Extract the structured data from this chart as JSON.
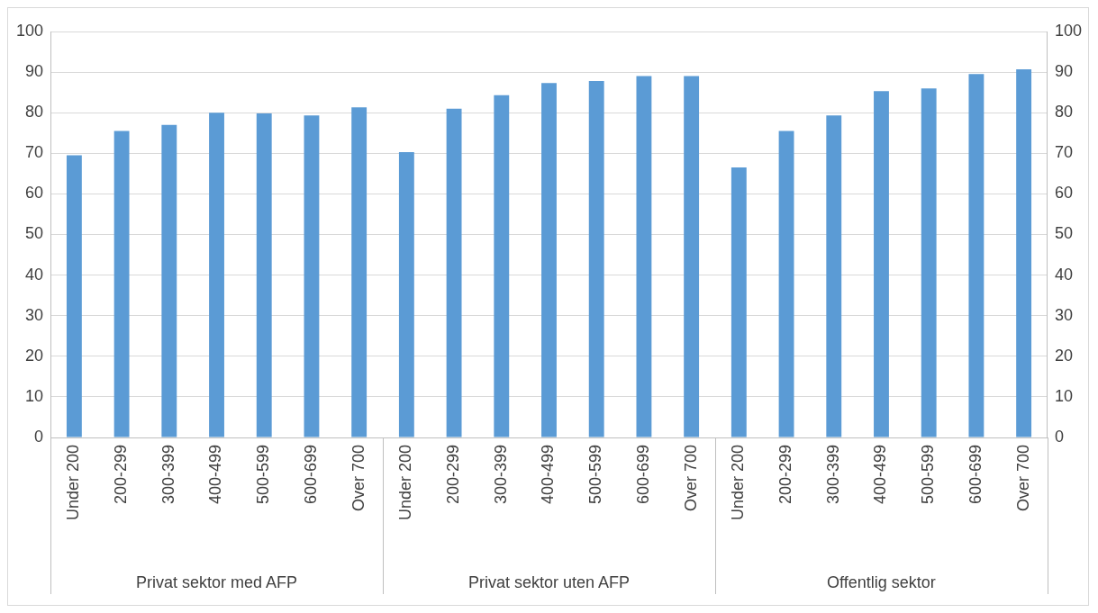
{
  "chart_data": {
    "type": "bar",
    "categories": [
      "Under 200",
      "200-299",
      "300-399",
      "400-499",
      "500-599",
      "600-699",
      "Over 700",
      "Under 200",
      "200-299",
      "300-399",
      "400-499",
      "500-599",
      "600-699",
      "Over 700",
      "Under 200",
      "200-299",
      "300-399",
      "400-499",
      "500-599",
      "600-699",
      "Over 700"
    ],
    "values": [
      69.5,
      75.5,
      77,
      80,
      79.8,
      79.3,
      81.3,
      70.3,
      81,
      84.3,
      87.3,
      87.8,
      89,
      89,
      66.5,
      75.5,
      79.3,
      85.3,
      86,
      89.5,
      90.7
    ],
    "color": "#5b9bd5",
    "ylim": [
      0,
      100
    ],
    "yticks": [
      0,
      10,
      20,
      30,
      40,
      50,
      60,
      70,
      80,
      90,
      100
    ],
    "y2lim": [
      0,
      100
    ],
    "y2ticks": [
      0,
      10,
      20,
      30,
      40,
      50,
      60,
      70,
      80,
      90,
      100
    ],
    "annotations": [
      "Privat sektor med AFP",
      "Privat sektor uten AFP",
      "Offentlig sektor"
    ],
    "grid": "y",
    "legend": false
  }
}
